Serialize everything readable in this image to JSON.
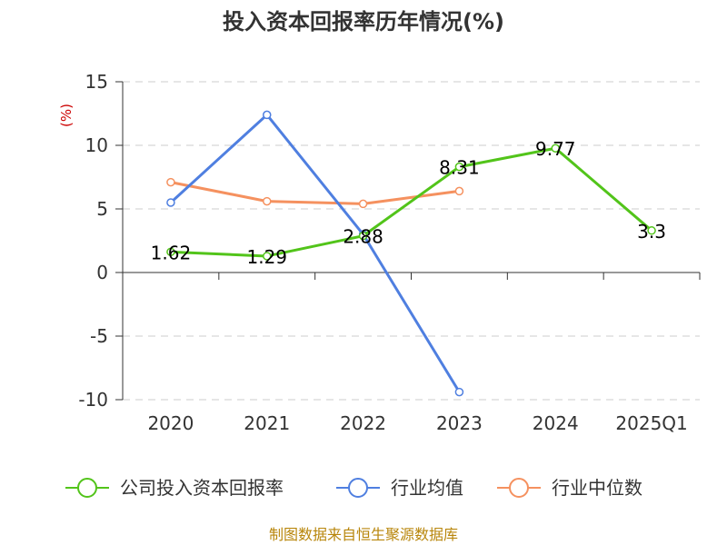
{
  "chart_data": {
    "type": "line",
    "title": "投入资本回报率历年情况(%)",
    "unit_label": "(%)",
    "categories": [
      "2020",
      "2021",
      "2022",
      "2023",
      "2024",
      "2025Q1"
    ],
    "y_ticks": [
      "15",
      "10",
      "5",
      "0",
      "-5",
      "-10"
    ],
    "ylim": [
      -10,
      15
    ],
    "grid": true,
    "legend_position": "bottom",
    "series": [
      {
        "name": "公司投入资本回报率",
        "color": "#52c41a",
        "values": [
          1.62,
          1.29,
          2.88,
          8.31,
          9.77,
          3.3
        ],
        "labels": [
          "1.62",
          "1.29",
          "2.88",
          "8.31",
          "9.77",
          "3.3"
        ]
      },
      {
        "name": "行业均值",
        "color": "#4f7fe0",
        "values": [
          5.5,
          12.4,
          3.0,
          -9.4,
          null,
          null
        ]
      },
      {
        "name": "行业中位数",
        "color": "#f5915f",
        "values": [
          7.1,
          5.6,
          5.4,
          6.4,
          null,
          null
        ]
      }
    ],
    "source": "制图数据来自恒生聚源数据库"
  }
}
